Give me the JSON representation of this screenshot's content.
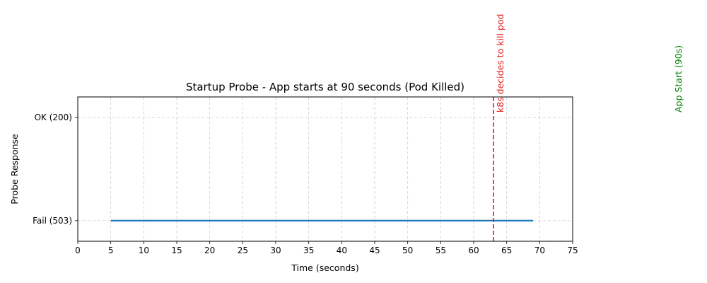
{
  "chart_data": {
    "type": "line",
    "title": "Startup Probe - App starts at 90 seconds (Pod Killed)",
    "xlabel": "Time (seconds)",
    "ylabel": "Probe Response",
    "xlim": [
      0,
      75
    ],
    "x_ticks": [
      0,
      5,
      10,
      15,
      20,
      25,
      30,
      35,
      40,
      45,
      50,
      55,
      60,
      65,
      70,
      75
    ],
    "x_tick_labels": [
      "0",
      "5",
      "10",
      "15",
      "20",
      "25",
      "30",
      "35",
      "40",
      "45",
      "50",
      "55",
      "60",
      "65",
      "70",
      "75"
    ],
    "ylim": [
      -0.2,
      1.2
    ],
    "y_ticks": [
      0,
      1
    ],
    "y_tick_labels": [
      "Fail (503)",
      "OK (200)"
    ],
    "grid": true,
    "series": [
      {
        "color": "#1f77b4",
        "x": [
          5,
          69
        ],
        "y": [
          0,
          0
        ]
      }
    ],
    "annotations": [
      {
        "type": "vline",
        "x": 63,
        "style": "dashed",
        "color": "#e31a1c",
        "label": "k8s decides to kill pod"
      },
      {
        "type": "vline-label",
        "x": 90,
        "color": "#008000",
        "label": "App Start (90s)"
      }
    ]
  }
}
